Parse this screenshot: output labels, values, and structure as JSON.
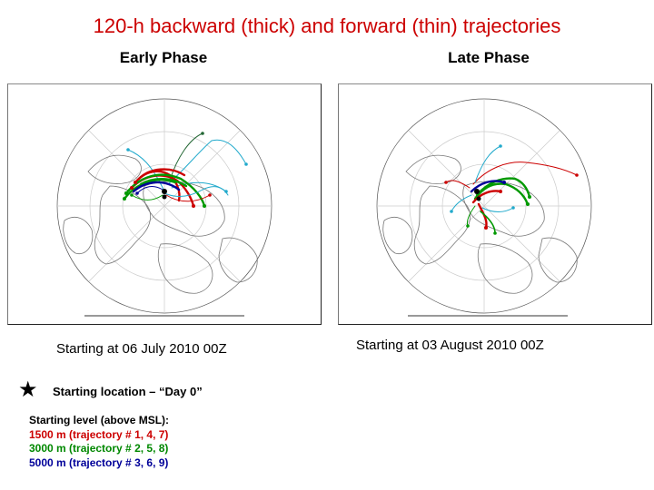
{
  "title": "120-h backward (thick) and forward (thin) trajectories",
  "panels": [
    {
      "heading": "Early Phase",
      "caption": "Starting at 06 July 2010  00Z"
    },
    {
      "heading": "Late Phase",
      "caption": "Starting at 03 August 2010  00Z"
    }
  ],
  "legend": {
    "star_icon": "star-icon",
    "start_label": "Starting location – “Day 0”",
    "levels_title": "Starting level (above MSL):",
    "levels": [
      {
        "text": "1500 m (trajectory # 1, 4, 7)",
        "color": "#cc0000"
      },
      {
        "text": "3000 m (trajectory # 2, 5, 8)",
        "color": "#008800"
      },
      {
        "text": "5000 m (trajectory # 3, 6, 9)",
        "color": "#000099"
      }
    ]
  },
  "colors": {
    "title": "#cc0000",
    "series_1500m": "#cc0000",
    "series_3000m": "#009900",
    "series_5000m": "#000099",
    "trajectory_cyan": "#22aacc",
    "trajectory_darkgreen": "#226633"
  }
}
